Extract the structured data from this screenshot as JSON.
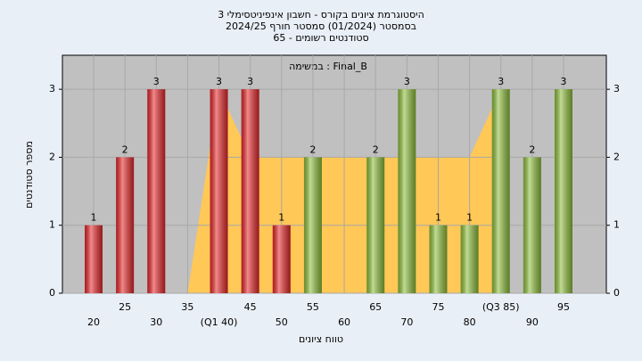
{
  "chart_data": {
    "type": "bar",
    "title": "היסטוגרמת ציונים בקורס - חשבון אינפיניטסימלי 3",
    "subtitle": "בסמסטר  (01/2024)  סמסטר חורף 2024/25",
    "subtitle2": "סטודנטים רשומים - 65",
    "legend_label": "Final_B : במשימה",
    "x_label": "טווח ציונים",
    "y_label": "מספר סטודנטים",
    "categories": [
      "20",
      "25",
      "30",
      "35",
      "(Q1 40)",
      "45",
      "50",
      "55",
      "60",
      "65",
      "70",
      "75",
      "80",
      "(Q3 85)",
      "90",
      "95"
    ],
    "values": [
      1,
      2,
      3,
      0,
      3,
      3,
      1,
      2,
      0,
      2,
      3,
      1,
      1,
      3,
      2,
      3
    ],
    "colors": [
      "#e8282b",
      "#e8282b",
      "#e8282b",
      "#e8282b",
      "#e8282b",
      "#e8282b",
      "#e8282b",
      "#8fc03c",
      "#8fc03c",
      "#8fc03c",
      "#8fc03c",
      "#8fc03c",
      "#8fc03c",
      "#8fc03c",
      "#8fc03c",
      "#8fc03c"
    ],
    "area_values": [
      null,
      null,
      null,
      0,
      3,
      2,
      2,
      2,
      2,
      2,
      2,
      2,
      2,
      3,
      null,
      null
    ],
    "area_color": "#ffc857",
    "ylim": [
      0,
      3.5
    ],
    "yticks": [
      0,
      1,
      2,
      3
    ],
    "y2ticks": [
      0,
      1,
      2,
      3
    ],
    "grid": true
  }
}
